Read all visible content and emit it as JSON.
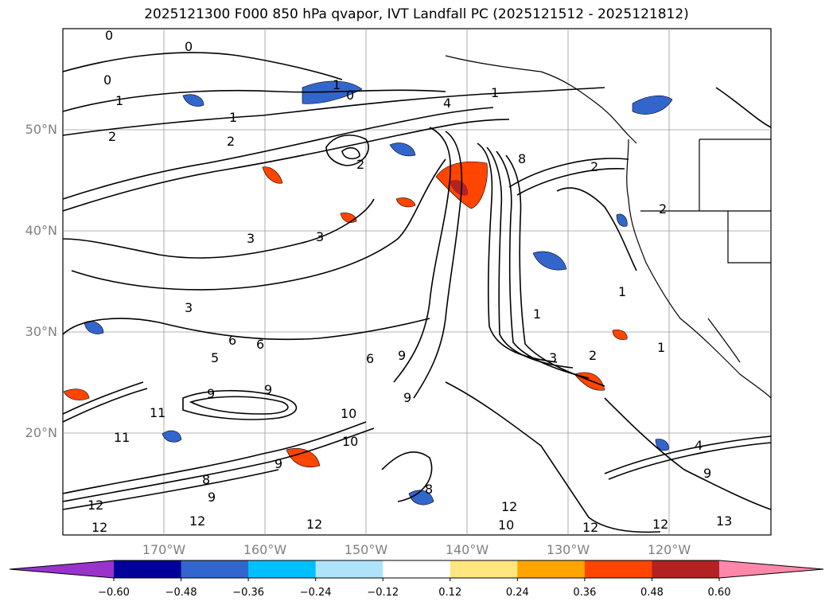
{
  "title": "2025121300 F000 850 hPa qvapor, IVT Landfall PC (2025121512 - 2025121812)",
  "map": {
    "lat_labels": [
      "50°N",
      "40°N",
      "30°N",
      "20°N"
    ],
    "lon_labels": [
      "170°W",
      "160°W",
      "150°W",
      "140°W",
      "130°W",
      "120°W"
    ],
    "contour_labels": [
      "0",
      "0",
      "0",
      "0",
      "1",
      "1",
      "1",
      "1",
      "2",
      "2",
      "2",
      "3",
      "3",
      "3",
      "4",
      "2",
      "2",
      "1",
      "1",
      "5",
      "6",
      "6",
      "6",
      "9",
      "9",
      "9",
      "11",
      "11",
      "9",
      "10",
      "10",
      "9",
      "8",
      "8",
      "9",
      "12",
      "12",
      "12",
      "12",
      "12",
      "10",
      "12",
      "12",
      "13",
      "9",
      "4",
      "8",
      "3",
      "2",
      "1"
    ],
    "colors": {
      "land_border": "#000000",
      "grid": "#808080",
      "contour": "#000000"
    }
  },
  "colorbar": {
    "ticks": [
      "−0.60",
      "−0.48",
      "−0.36",
      "−0.24",
      "−0.12",
      "0.12",
      "0.24",
      "0.36",
      "0.48",
      "0.60"
    ],
    "colors": [
      "#9933cc",
      "#000099",
      "#3366cc",
      "#00bfff",
      "#aee3fb",
      "#ffffff",
      "#ffe680",
      "#ffa500",
      "#ff4500",
      "#b22222",
      "#ff88aa"
    ]
  }
}
